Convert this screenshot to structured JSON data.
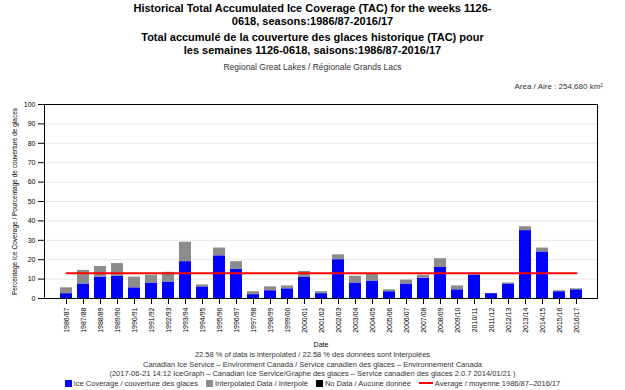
{
  "chart_data": {
    "type": "bar",
    "stacked": true,
    "title": "Historical Total Accumulated Ice Coverage (TAC) for the weeks 1126-0618, seasons:1986/87-2016/17",
    "subtitle": "Total accumulé de la couverture des glaces historique (TAC) pour les semaines 1126-0618, saisons:1986/87-2016/17",
    "region": "Regional Great Lakes / Régionale Grands Lacs",
    "area": "Area / Aire : 254,680 km²",
    "x_label": "Date",
    "y_label": "Percentage Ice Coverage / Pourcentage de couverture de glaces",
    "notes": [
      "22.58 % of data is interpolated / 22.58 % des données sont interpolées",
      "Canadian Ice Service – Environment Canada / Service canadien des glaces – Environnement Canada",
      "(2017-06-21 14:12 IceGraph – Canadian Ice Service/Graphe des glaces – Service canadien des glaces 2.0.7 2014/01/21 )"
    ],
    "categories": [
      "1986/87",
      "1987/88",
      "1988/89",
      "1989/90",
      "1990/91",
      "1991/92",
      "1992/93",
      "1993/94",
      "1994/95",
      "1995/96",
      "1996/97",
      "1997/98",
      "1998/99",
      "1999/00",
      "2000/01",
      "2001/02",
      "2002/03",
      "2003/04",
      "2004/05",
      "2005/06",
      "2006/07",
      "2007/08",
      "2008/09",
      "2009/10",
      "2010/11",
      "2011/12",
      "2012/13",
      "2013/14",
      "2014/15",
      "2015/16",
      "2016/17"
    ],
    "series": [
      {
        "name": "Ice Coverage / couverture des glaces",
        "color": "#0000ff",
        "values": [
          2.5,
          7.5,
          11,
          11.5,
          5.5,
          8,
          8.5,
          19,
          6,
          22,
          15,
          2,
          4,
          5,
          11,
          2.5,
          20,
          8,
          9,
          3.5,
          7.5,
          10.5,
          16,
          4.5,
          12,
          2.5,
          7.5,
          35,
          24,
          3.5,
          4.5
        ]
      },
      {
        "name": "Interpolated Data / Interpolé",
        "color": "#8c8c8c",
        "values": [
          3,
          7,
          5.5,
          6.5,
          5.5,
          4,
          5,
          10,
          1,
          4,
          4,
          1.5,
          2,
          1.5,
          3,
          1,
          2.5,
          3.5,
          3.5,
          1,
          2,
          1.5,
          4.5,
          2,
          1,
          0,
          0.5,
          2,
          2,
          0.5,
          0.5
        ]
      },
      {
        "name": "No Data / Aucune donnée",
        "color": "#000000",
        "values": [
          0,
          0,
          0,
          0,
          0,
          0,
          0,
          0,
          0,
          0,
          0,
          0,
          0,
          0,
          0,
          0,
          0,
          0,
          0,
          0,
          0,
          0,
          0,
          0,
          0,
          0,
          0,
          0,
          0,
          0,
          0
        ]
      },
      {
        "name": "Average / moyenne 1986/87–2016/17",
        "color": "#ff0000",
        "type": "line",
        "values": [
          13,
          13,
          13,
          13,
          13,
          13,
          13,
          13,
          13,
          13,
          13,
          13,
          13,
          13,
          13,
          13,
          13,
          13,
          13,
          13,
          13,
          13,
          13,
          13,
          13,
          13,
          13,
          13,
          13,
          13,
          13
        ]
      }
    ],
    "ylim": [
      0,
      100
    ],
    "yticks": [
      0,
      10,
      20,
      30,
      40,
      50,
      60,
      70,
      80,
      90,
      100
    ],
    "grid": true,
    "legend": "bottom"
  }
}
